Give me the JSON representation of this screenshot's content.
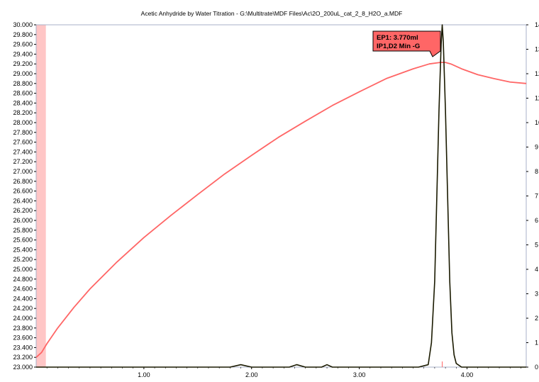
{
  "window": {
    "title": "Acetic Anhydride by Water Titration - G:\\Multitrate\\MDF Files\\Ac\\2O_200uL_cat_2_8_H2O_a.MDF"
  },
  "annotation": {
    "line1": "EP1: 3.770ml",
    "line2": "IP1,D2 Min -G",
    "color": "#ff6666"
  },
  "chart_data": {
    "type": "line",
    "title": "Acetic Anhydride by Water Titration - G:\\Multitrate\\MDF Files\\Ac\\2O_200uL_cat_2_8_H2O_a.MDF",
    "xlabel": "",
    "ylabel": "",
    "xlim": [
      0.0,
      4.55
    ],
    "ylim": [
      23.0,
      30.0
    ],
    "y2lim": [
      0,
      14
    ],
    "x_ticks": [
      "1.00",
      "2.00",
      "3.00",
      "4.00"
    ],
    "y_ticks": [
      "23.000",
      "23.200",
      "23.400",
      "23.600",
      "23.800",
      "24.000",
      "24.200",
      "24.400",
      "24.600",
      "24.800",
      "25.000",
      "25.200",
      "25.400",
      "25.600",
      "25.800",
      "26.000",
      "26.200",
      "26.400",
      "26.600",
      "26.800",
      "27.000",
      "27.200",
      "27.400",
      "27.600",
      "27.800",
      "28.000",
      "28.200",
      "28.400",
      "28.600",
      "28.800",
      "29.000",
      "29.200",
      "29.400",
      "29.600",
      "29.800",
      "30.000"
    ],
    "y2_ticks": [
      "0",
      "1",
      "2",
      "3",
      "4",
      "5",
      "6",
      "7",
      "8",
      "9",
      "10",
      "11",
      "12",
      "13",
      "14"
    ],
    "grid": false,
    "shaded_region": {
      "x": [
        0.0,
        0.09
      ],
      "color": "#ffc6c6"
    },
    "series": [
      {
        "axis": "left",
        "color": "#ff6666",
        "x": [
          0.0,
          0.05,
          0.1,
          0.2,
          0.35,
          0.5,
          0.75,
          1.0,
          1.25,
          1.5,
          1.75,
          2.0,
          2.25,
          2.5,
          2.75,
          3.0,
          3.25,
          3.5,
          3.65,
          3.75,
          3.8,
          3.85,
          3.95,
          4.1,
          4.25,
          4.4,
          4.55
        ],
        "values": [
          23.2,
          23.3,
          23.48,
          23.8,
          24.22,
          24.6,
          25.15,
          25.65,
          26.1,
          26.53,
          26.95,
          27.33,
          27.7,
          28.03,
          28.35,
          28.63,
          28.9,
          29.1,
          29.2,
          29.23,
          29.23,
          29.2,
          29.1,
          28.98,
          28.9,
          28.83,
          28.8
        ]
      },
      {
        "axis": "right",
        "color": "#1a1a00",
        "x": [
          0.0,
          1.0,
          1.8,
          1.9,
          2.0,
          2.35,
          2.42,
          2.5,
          2.65,
          2.7,
          2.75,
          3.55,
          3.64,
          3.67,
          3.7,
          3.72,
          3.74,
          3.76,
          3.77,
          3.78,
          3.8,
          3.82,
          3.84,
          3.86,
          3.88,
          3.9,
          3.95,
          4.2,
          4.55
        ],
        "values": [
          0.0,
          0.0,
          0.0,
          0.1,
          0.0,
          0.0,
          0.1,
          0.0,
          0.0,
          0.1,
          0.0,
          0.0,
          0.1,
          1.0,
          3.5,
          7.0,
          10.5,
          13.2,
          14.0,
          13.3,
          10.5,
          7.0,
          3.5,
          1.4,
          0.5,
          0.15,
          0.0,
          0.0,
          0.0
        ]
      }
    ],
    "markers": [
      {
        "x": 3.77,
        "color": "#ff6666"
      }
    ]
  }
}
